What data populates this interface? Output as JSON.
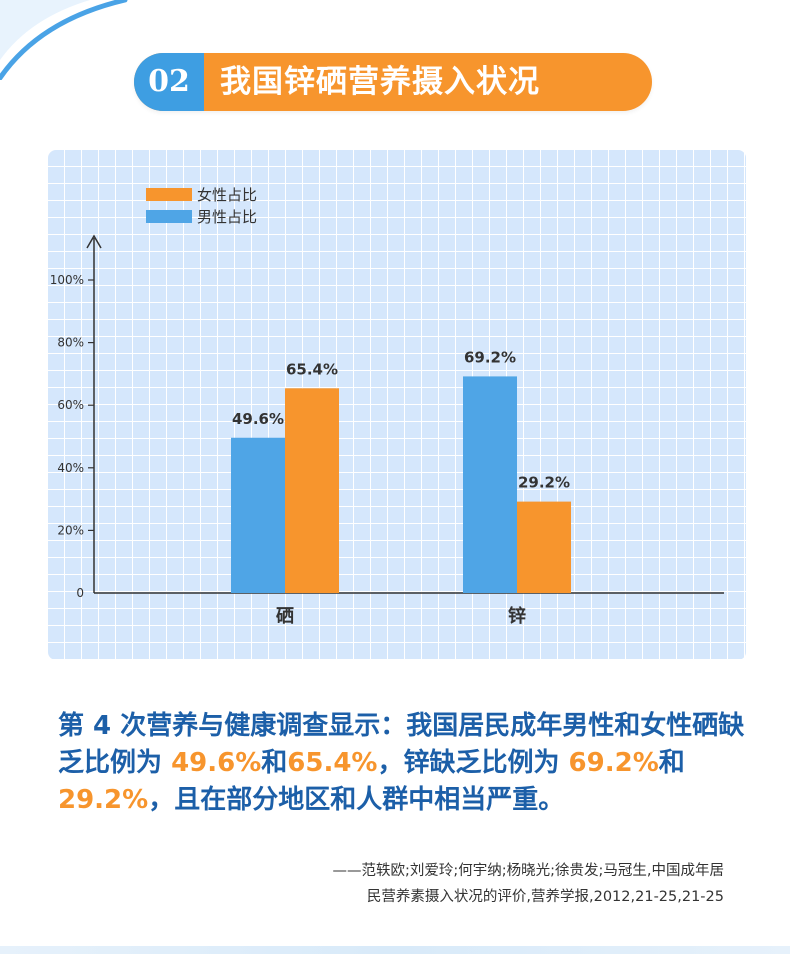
{
  "header": {
    "number": "02",
    "title": "我国锌硒营养摄入状况",
    "colors": {
      "number_bg": "#3e9ee2",
      "title_bg": "#f7952d"
    }
  },
  "chart_data": {
    "type": "bar",
    "categories": [
      "硒",
      "锌"
    ],
    "series": [
      {
        "name": "男性占比",
        "color": "#4fa5e6",
        "values": [
          49.6,
          69.2
        ],
        "labels": [
          "49.6%",
          "69.2%"
        ]
      },
      {
        "name": "女性占比",
        "color": "#f7952d",
        "values": [
          65.4,
          29.2
        ],
        "labels": [
          "65.4%",
          "29.2%"
        ]
      }
    ],
    "legend_order": [
      "女性占比",
      "男性占比"
    ],
    "legend_placement": "top-left",
    "ylim": [
      0,
      100
    ],
    "yticks": [
      {
        "value": 0,
        "label": "0"
      },
      {
        "value": 20,
        "label": "20%"
      },
      {
        "value": 40,
        "label": "40%"
      },
      {
        "value": 60,
        "label": "60%"
      },
      {
        "value": 80,
        "label": "80%"
      },
      {
        "value": 100,
        "label": "100%"
      }
    ],
    "grid": true
  },
  "summary": {
    "part1": "第 4 次营养与健康调查显示：我国居民成年男性和女性硒缺乏比例为 ",
    "v1": "49.6%",
    "and1": "和",
    "v2": "65.4%",
    "part2": "，锌缺乏比例为 ",
    "v3": "69.2%",
    "and2": "和",
    "v4": "29.2%",
    "part3": "，且在部分地区和人群中相当严重。"
  },
  "citation": {
    "line1": "——范轶欧;刘爱玲;何宇纳;杨晓光;徐贵发;马冠生,中国成年居",
    "line2": "民营养素摄入状况的评价,营养学报,2012,21-25,21-25"
  }
}
